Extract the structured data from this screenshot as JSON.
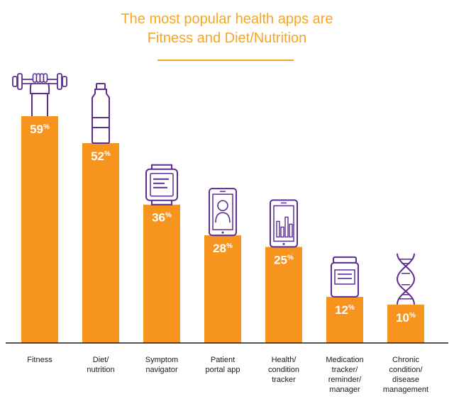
{
  "title": {
    "line1": "The most popular health apps are",
    "line2": "Fitness and Diet/Nutrition"
  },
  "colors": {
    "bar": "#f7941d",
    "title": "#f5a623",
    "icon": "#5b2d90",
    "value_text": "#ffffff",
    "axis": "#1a1a1a"
  },
  "chart_data": {
    "type": "bar",
    "title": "The most popular health apps are Fitness and Diet/Nutrition",
    "categories": [
      "Fitness",
      "Diet/\nnutrition",
      "Symptom\nnavigator",
      "Patient\nportal app",
      "Health/\ncondition\ntracker",
      "Medication\ntracker/\nreminder/\nmanager",
      "Chronic\ncondition/\ndisease\nmanagement"
    ],
    "values": [
      59,
      52,
      36,
      28,
      25,
      12,
      10
    ],
    "value_suffix": "%",
    "ylim": [
      0,
      59
    ],
    "icons": [
      "dumbbell-hand-icon",
      "water-bottle-icon",
      "smartwatch-icon",
      "tablet-patient-icon",
      "tablet-chart-icon",
      "pill-bottle-icon",
      "dna-icon"
    ],
    "grid": false,
    "legend": "none"
  }
}
